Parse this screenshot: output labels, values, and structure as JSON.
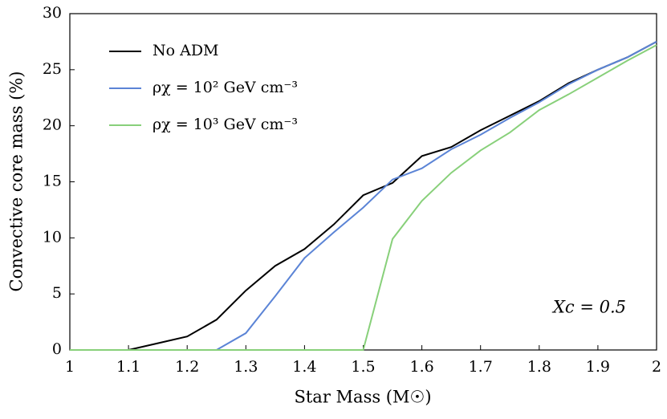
{
  "chart_data": {
    "type": "line",
    "x_label": "Star Mass (M☉)",
    "y_label": "Convective core mass (%)",
    "annotation": "Xc = 0.5",
    "x": [
      1.0,
      1.05,
      1.1,
      1.15,
      1.2,
      1.25,
      1.3,
      1.35,
      1.4,
      1.45,
      1.5,
      1.55,
      1.6,
      1.65,
      1.7,
      1.75,
      1.8,
      1.85,
      1.9,
      1.95,
      2.0
    ],
    "series": [
      {
        "name": "No ADM",
        "color": "#000000",
        "values": [
          0,
          0,
          0,
          0.6,
          1.2,
          2.7,
          5.3,
          7.5,
          9.0,
          11.2,
          13.8,
          14.9,
          17.3,
          18.1,
          19.6,
          20.9,
          22.2,
          23.8,
          25.0,
          26.1,
          27.5
        ]
      },
      {
        "name": "ρχ = 10² GeV cm⁻³",
        "color": "#5b84d6",
        "values": [
          0,
          0,
          0,
          0,
          0,
          0,
          1.5,
          4.8,
          8.2,
          10.5,
          12.7,
          15.2,
          16.2,
          17.9,
          19.2,
          20.7,
          22.1,
          23.7,
          25.0,
          26.1,
          27.5
        ]
      },
      {
        "name": "ρχ = 10³ GeV cm⁻³",
        "color": "#88d07a",
        "values": [
          0,
          0,
          0,
          0,
          0,
          0,
          0,
          0,
          0,
          0,
          0,
          9.9,
          13.3,
          15.8,
          17.8,
          19.4,
          21.4,
          22.8,
          24.3,
          25.8,
          27.2
        ]
      }
    ],
    "xlim": [
      1,
      2
    ],
    "xticks": [
      1,
      1.1,
      1.2,
      1.3,
      1.4,
      1.5,
      1.6,
      1.7,
      1.8,
      1.9,
      2
    ],
    "ylim": [
      0,
      30
    ],
    "yticks": [
      0,
      5,
      10,
      15,
      20,
      25,
      30
    ],
    "legend": "upper left"
  }
}
